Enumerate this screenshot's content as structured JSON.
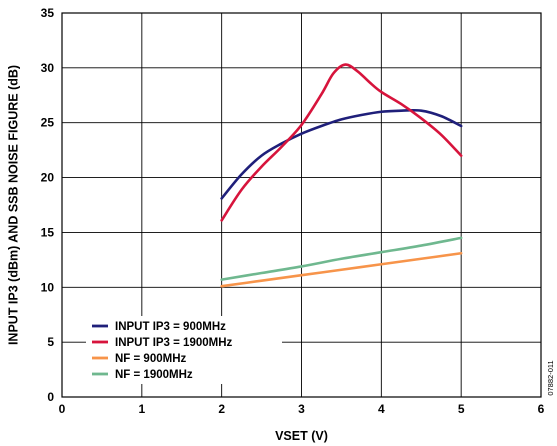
{
  "chart_data": {
    "type": "line",
    "xlabel": "VSET (V)",
    "ylabel": "INPUT IP3 (dBm) AND SSB NOISE FIGURE (dB)",
    "xlim": [
      0,
      6
    ],
    "ylim": [
      0,
      35
    ],
    "x_ticks": [
      "0",
      "1",
      "2",
      "3",
      "4",
      "5",
      "6"
    ],
    "y_ticks": [
      "0",
      "5",
      "10",
      "15",
      "20",
      "25",
      "30",
      "35"
    ],
    "grid": true,
    "legend_position": "bottom-left",
    "figure_id": "07882-011",
    "series": [
      {
        "name": "INPUT IP3 = 900MHz",
        "color": "#1f1f7a",
        "x": [
          2.0,
          2.25,
          2.5,
          2.75,
          3.0,
          3.25,
          3.5,
          3.75,
          4.0,
          4.25,
          4.5,
          4.75,
          5.0
        ],
        "y": [
          18.1,
          20.3,
          22.0,
          23.1,
          24.0,
          24.7,
          25.3,
          25.7,
          26.0,
          26.1,
          26.1,
          25.6,
          24.7
        ]
      },
      {
        "name": "INPUT IP3 = 1900MHz",
        "color": "#d7143c",
        "x": [
          2.0,
          2.25,
          2.5,
          2.75,
          3.0,
          3.25,
          3.4,
          3.55,
          3.7,
          3.85,
          4.0,
          4.25,
          4.5,
          4.75,
          5.0
        ],
        "y": [
          16.1,
          18.9,
          21.0,
          22.8,
          24.8,
          27.6,
          29.5,
          30.3,
          29.7,
          28.7,
          27.8,
          26.7,
          25.4,
          23.9,
          22.0
        ]
      },
      {
        "name": "NF = 900MHz",
        "color": "#f7944a",
        "x": [
          2.0,
          2.5,
          3.0,
          3.5,
          4.0,
          4.5,
          5.0
        ],
        "y": [
          10.1,
          10.6,
          11.1,
          11.6,
          12.1,
          12.6,
          13.1
        ]
      },
      {
        "name": "NF = 1900MHz",
        "color": "#6fb88f",
        "x": [
          2.0,
          2.5,
          3.0,
          3.5,
          4.0,
          4.5,
          5.0
        ],
        "y": [
          10.7,
          11.3,
          11.9,
          12.6,
          13.2,
          13.8,
          14.5
        ]
      }
    ]
  }
}
